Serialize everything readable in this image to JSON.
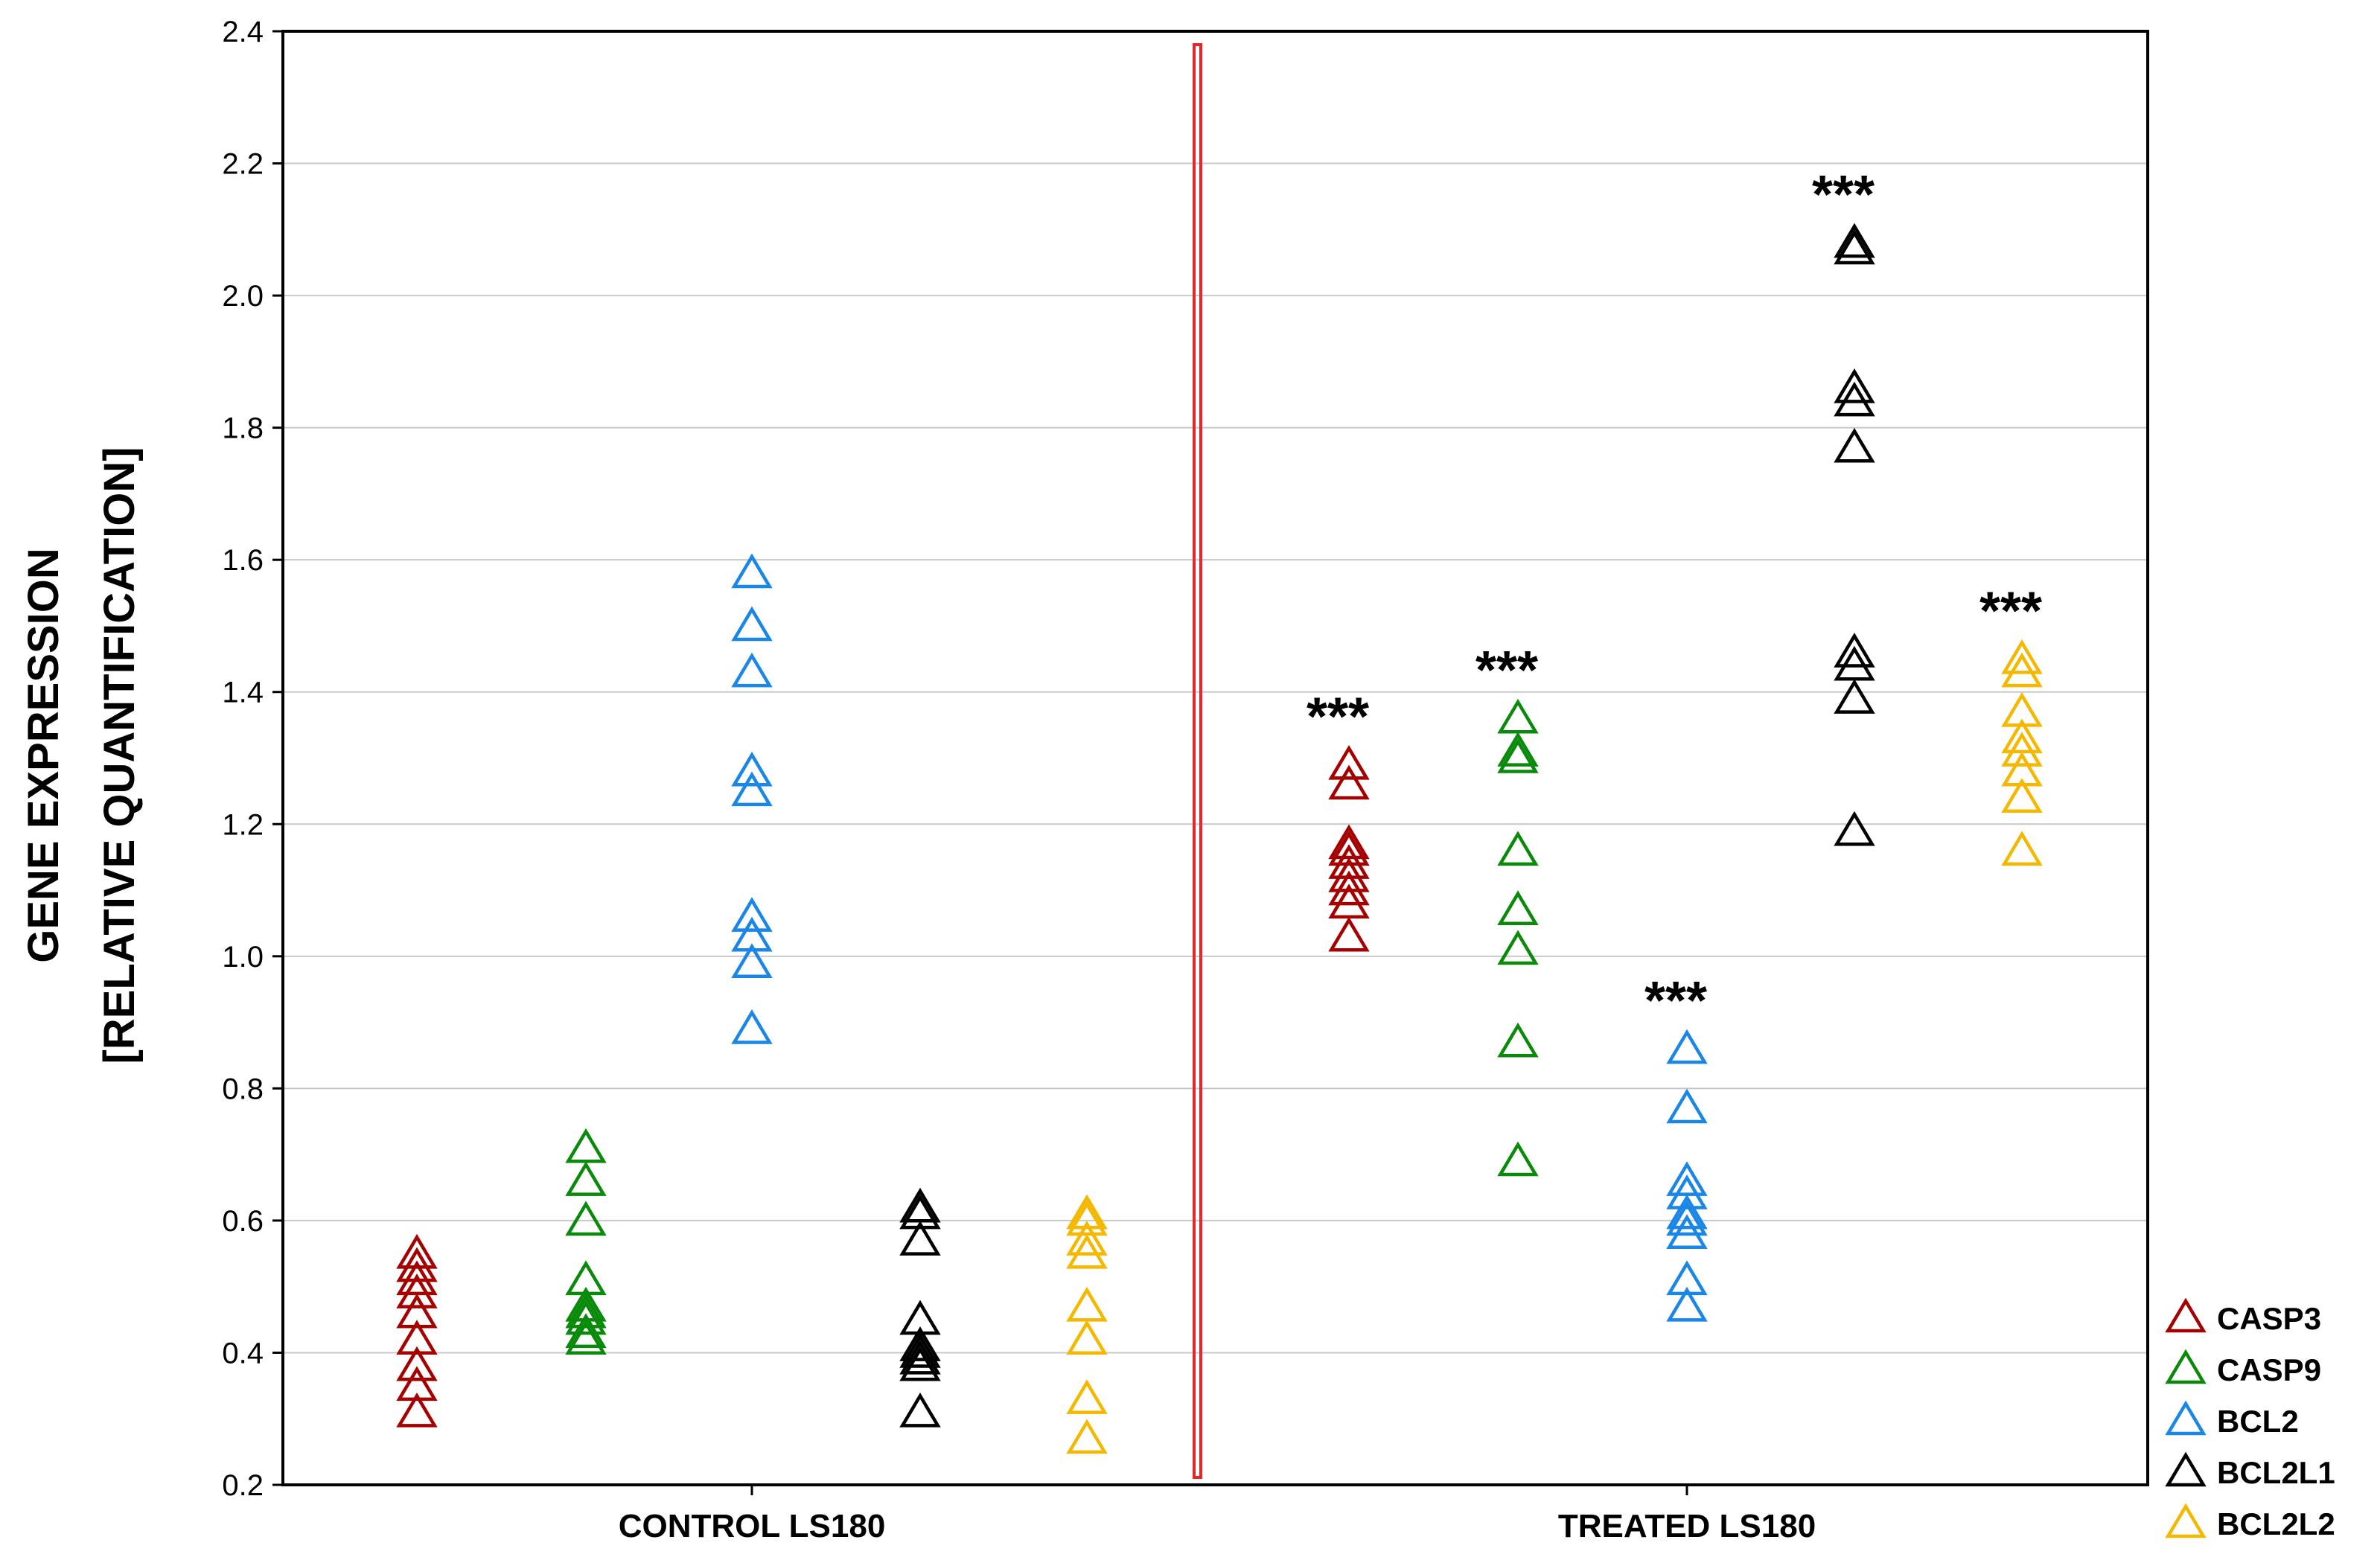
{
  "chart_data": {
    "type": "scatter",
    "title": "",
    "ylabel_line1": "GENE EXPRESSION",
    "ylabel_line2": "[RELATIVE QUANTIFICATION]",
    "xlabel": "",
    "ylim": [
      0.2,
      2.4
    ],
    "y_ticks": [
      0.2,
      0.4,
      0.6,
      0.8,
      1.0,
      1.2,
      1.4,
      1.6,
      1.8,
      2.0,
      2.2,
      2.4
    ],
    "y_tick_labels": [
      "0.2",
      "0.4",
      "0.6",
      "0.8",
      "1.0",
      "1.2",
      "1.4",
      "1.6",
      "1.8",
      "2.0",
      "2.2",
      "2.4"
    ],
    "grid": true,
    "marker": "open-triangle",
    "groups": [
      "CONTROL LS180",
      "TREATED LS180"
    ],
    "group_divider": "vertical red line between groups",
    "legend_position": "bottom-right",
    "significance_label": "***",
    "series": [
      {
        "name": "CASP3",
        "color": "#a50000",
        "control": [
          0.55,
          0.53,
          0.51,
          0.49,
          0.46,
          0.42,
          0.38,
          0.35,
          0.31
        ],
        "treated": [
          1.29,
          1.26,
          1.17,
          1.16,
          1.14,
          1.12,
          1.1,
          1.08,
          1.03
        ],
        "treated_significance": "***"
      },
      {
        "name": "CASP9",
        "color": "#0a8a0a",
        "control": [
          0.71,
          0.66,
          0.6,
          0.51,
          0.47,
          0.46,
          0.45,
          0.43,
          0.42
        ],
        "treated": [
          1.36,
          1.31,
          1.3,
          1.16,
          1.07,
          1.01,
          0.87,
          0.69
        ],
        "treated_significance": "***"
      },
      {
        "name": "BCL2",
        "color": "#1a86e6",
        "control": [
          1.58,
          1.5,
          1.43,
          1.28,
          1.25,
          1.06,
          1.03,
          0.99,
          0.89
        ],
        "treated": [
          0.86,
          0.77,
          0.66,
          0.64,
          0.61,
          0.6,
          0.58,
          0.51,
          0.47
        ],
        "treated_significance": "***"
      },
      {
        "name": "BCL2L1",
        "color": "#000000",
        "control": [
          0.62,
          0.61,
          0.57,
          0.45,
          0.41,
          0.4,
          0.39,
          0.38,
          0.31
        ],
        "treated": [
          2.08,
          2.07,
          1.86,
          1.84,
          1.77,
          1.46,
          1.44,
          1.39,
          1.19
        ],
        "treated_significance": "***"
      },
      {
        "name": "BCL2L2",
        "color": "#f5b800",
        "control": [
          0.61,
          0.6,
          0.57,
          0.55,
          0.47,
          0.42,
          0.33,
          0.27
        ],
        "treated": [
          1.45,
          1.43,
          1.37,
          1.33,
          1.31,
          1.28,
          1.24,
          1.16
        ],
        "treated_significance": "***"
      }
    ]
  }
}
